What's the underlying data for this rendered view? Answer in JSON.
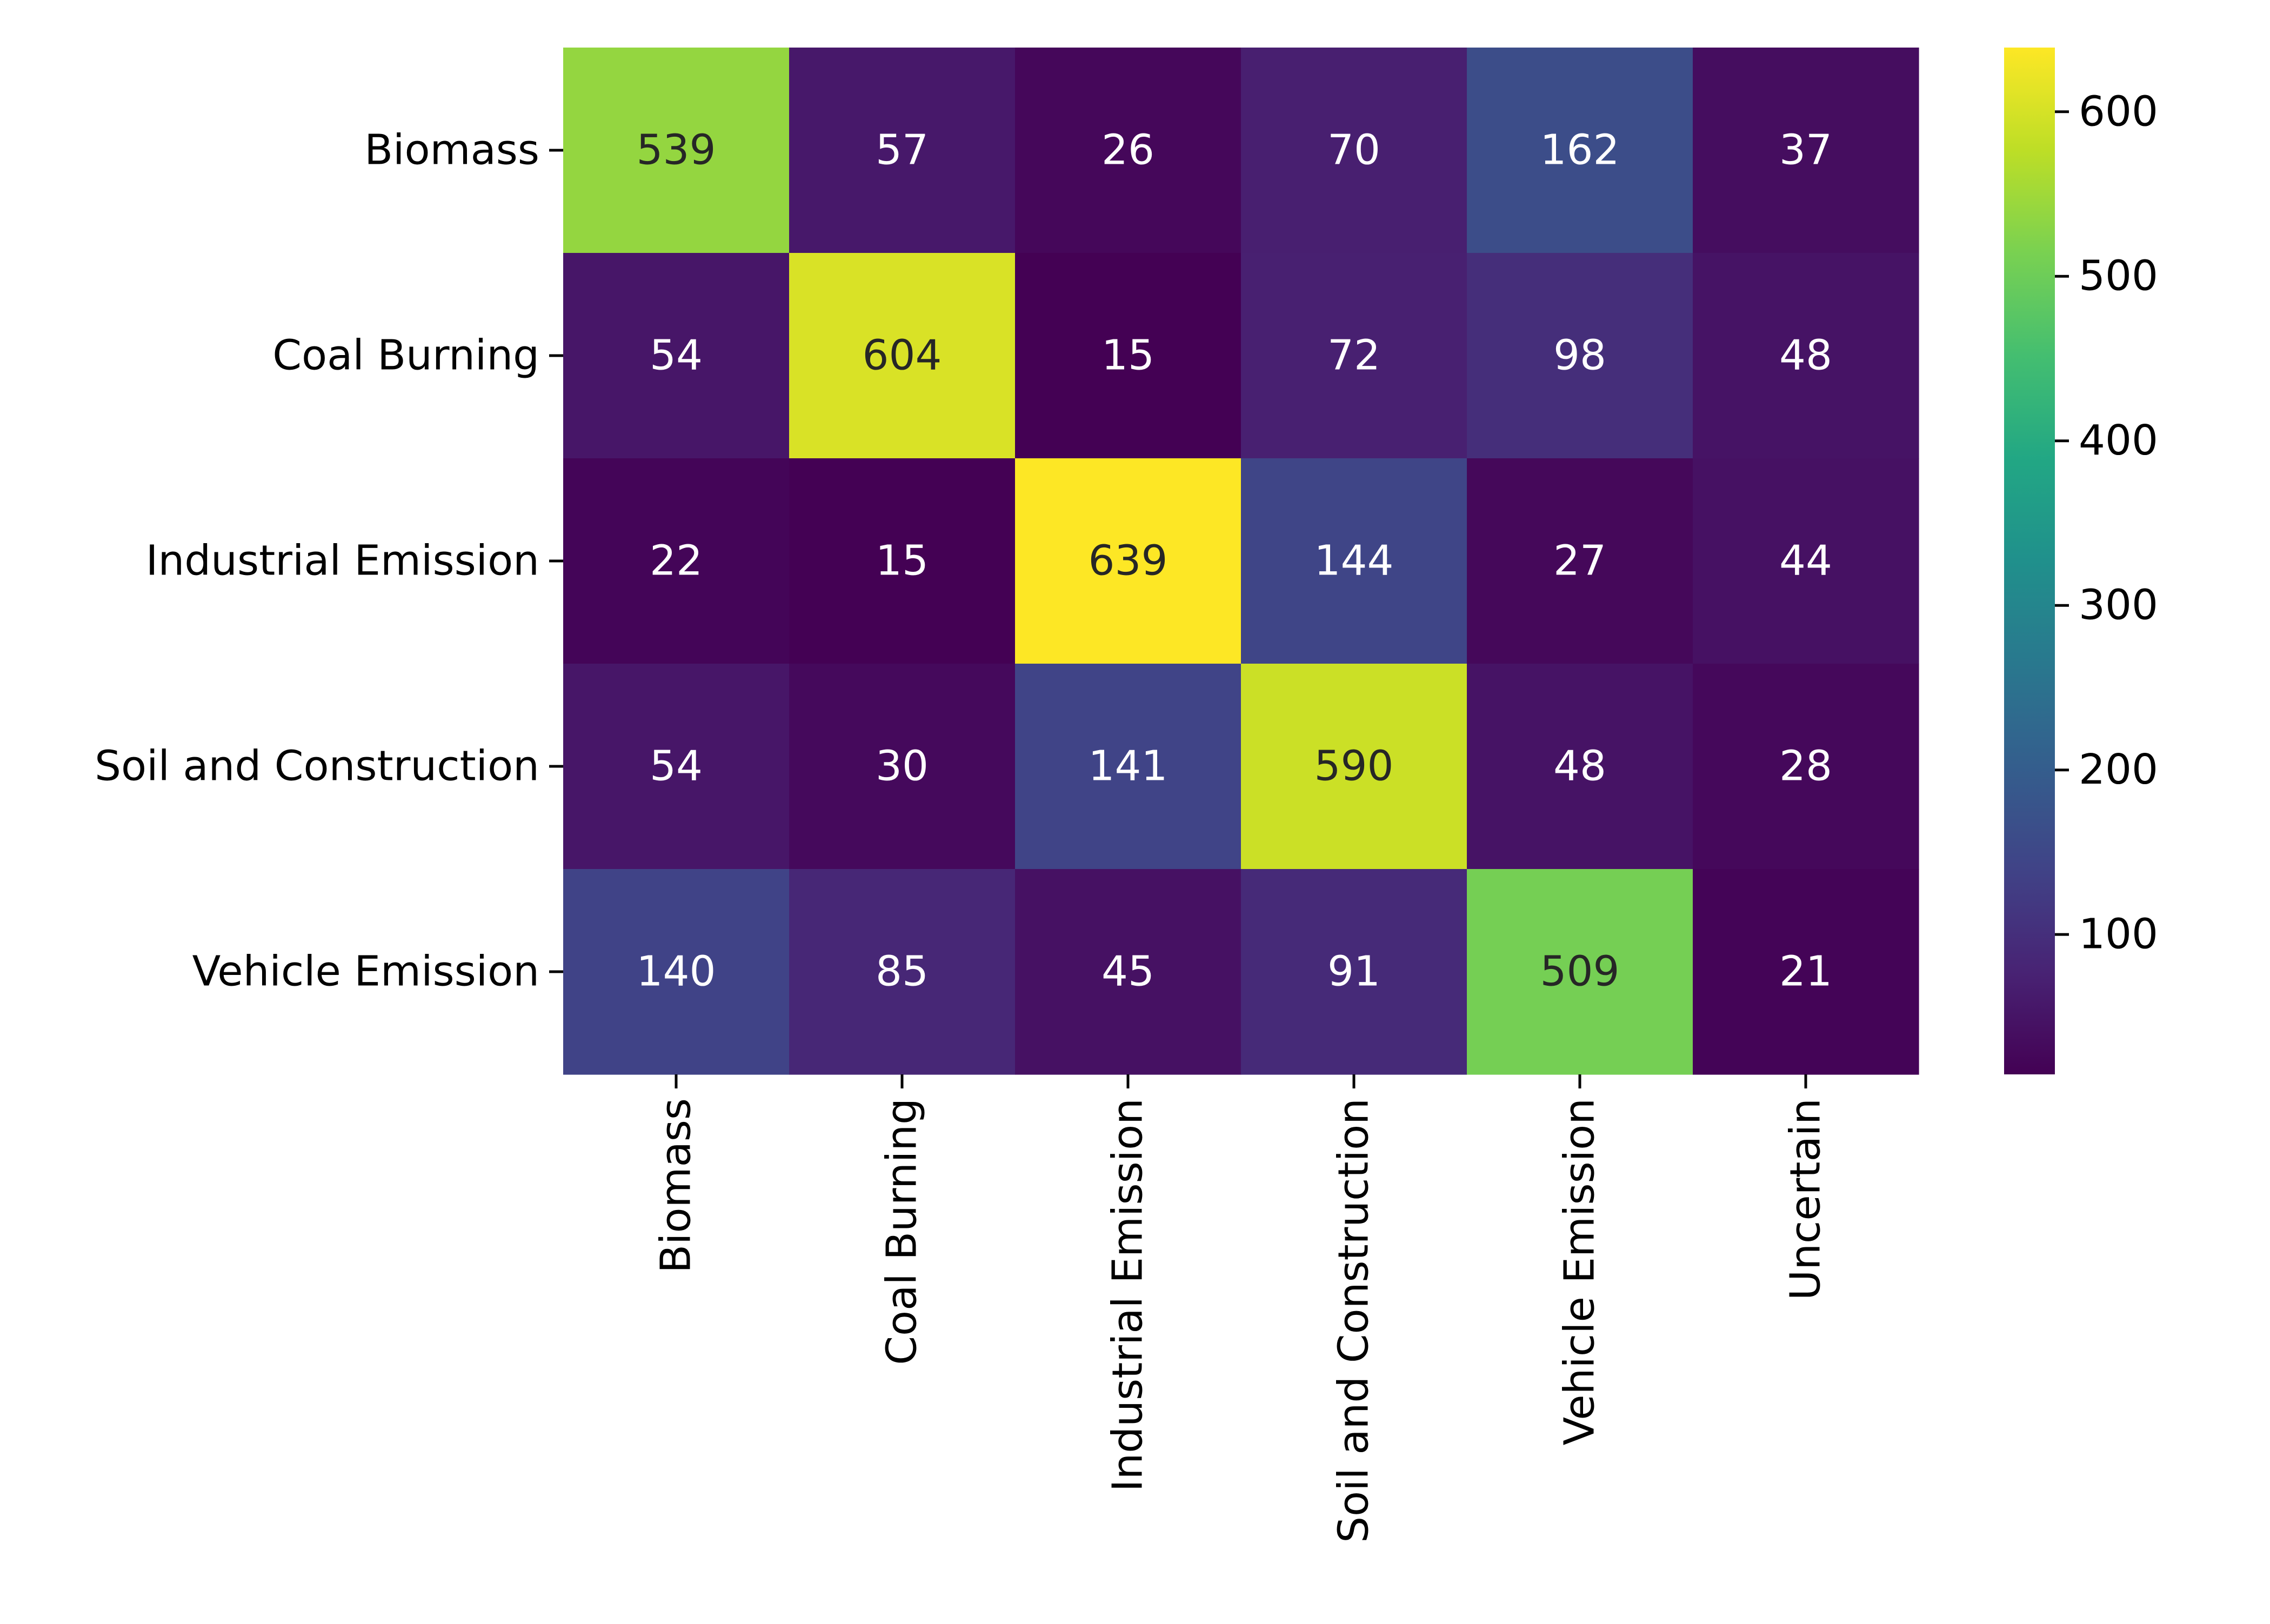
{
  "chart_data": {
    "type": "heatmap",
    "title": "",
    "xlabel": "",
    "ylabel": "",
    "rows": [
      "Biomass",
      "Coal Burning",
      "Industrial Emission",
      "Soil and Construction",
      "Vehicle Emission"
    ],
    "columns": [
      "Biomass",
      "Coal Burning",
      "Industrial Emission",
      "Soil and Construction",
      "Vehicle Emission",
      "Uncertain"
    ],
    "values": [
      [
        539,
        57,
        26,
        70,
        162,
        37
      ],
      [
        54,
        604,
        15,
        72,
        98,
        48
      ],
      [
        22,
        15,
        639,
        144,
        27,
        44
      ],
      [
        54,
        30,
        141,
        590,
        48,
        28
      ],
      [
        140,
        85,
        45,
        91,
        509,
        21
      ]
    ],
    "annotated": true,
    "colormap": "viridis",
    "colorbar": {
      "vmin": 15,
      "vmax": 639,
      "ticks": [
        100,
        200,
        300,
        400,
        500,
        600
      ],
      "tick_labels": [
        "100",
        "200",
        "300",
        "400",
        "500",
        "600"
      ]
    },
    "grid": false,
    "legend": "colorbar-right"
  }
}
